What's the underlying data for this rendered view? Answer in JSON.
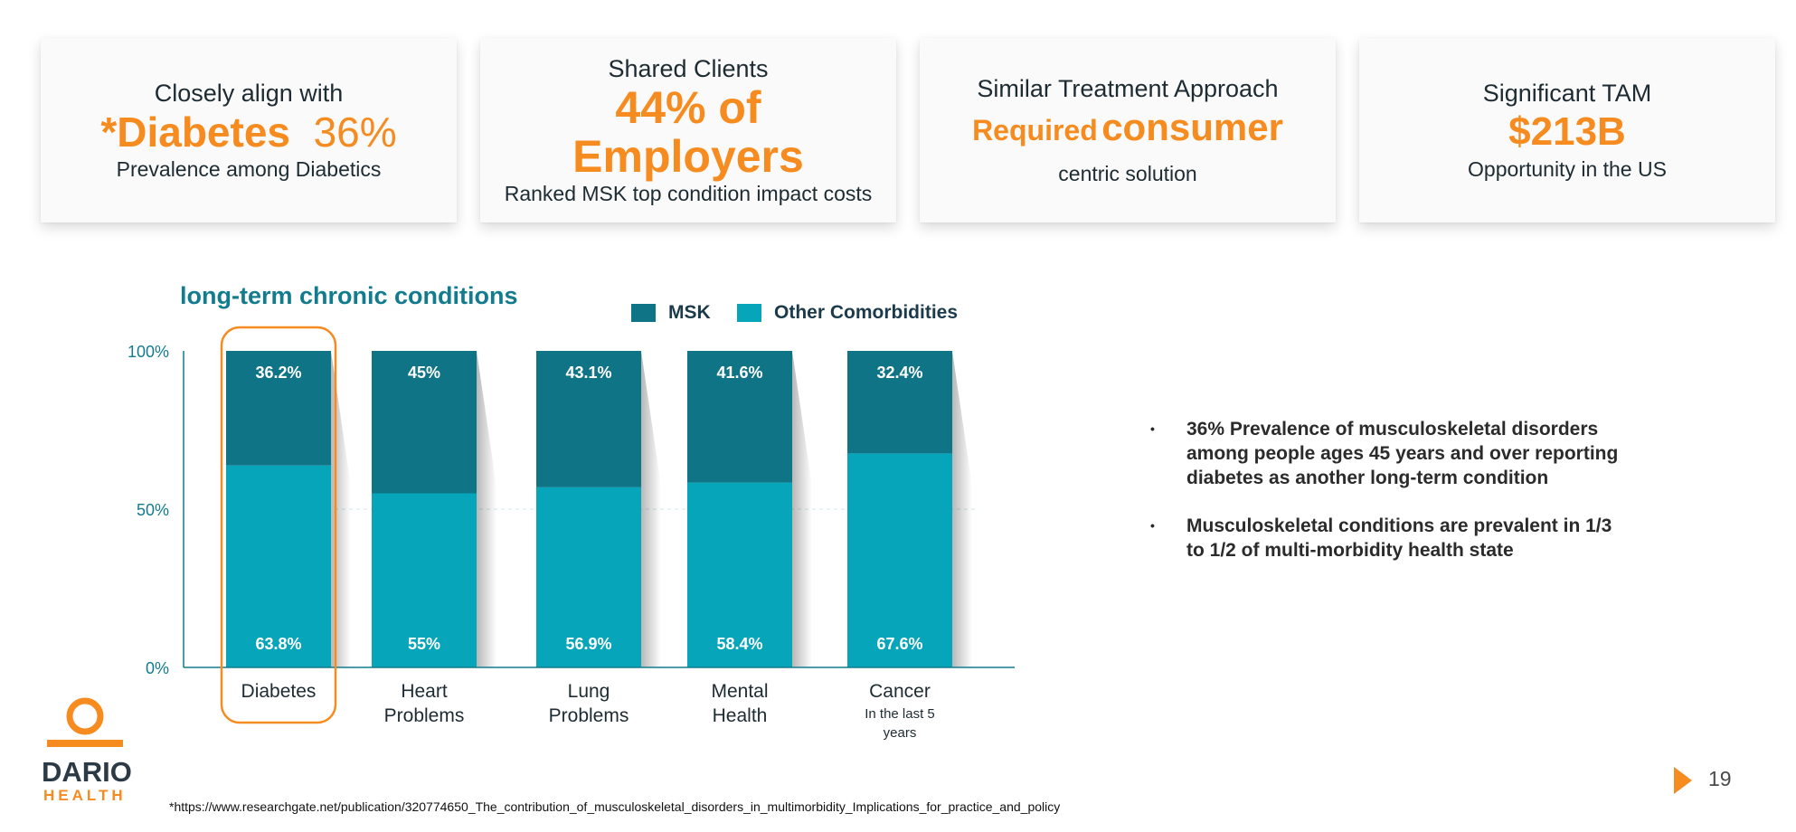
{
  "cards": [
    {
      "lead": "Closely align with",
      "big_a": "*Diabetes",
      "big_b": "36%",
      "sub": "Prevalence among Diabetics"
    },
    {
      "lead": "Shared Clients",
      "big_a": "44%  of",
      "big_b": "Employers",
      "sub": "Ranked MSK top condition impact costs"
    },
    {
      "lead": "Similar Treatment Approach",
      "big_a": "Required",
      "big_b": "consumer",
      "sub": "centric solution"
    },
    {
      "lead": "Significant TAM",
      "big_a": "$213B",
      "sub": "Opportunity in the US"
    }
  ],
  "chart_data": {
    "type": "bar",
    "stacked": true,
    "title": "long-term chronic conditions",
    "categories": [
      "Diabetes",
      "Heart Problems",
      "Lung Problems",
      "Mental Health",
      "Cancer"
    ],
    "category_lines": [
      [
        "Diabetes"
      ],
      [
        "Heart",
        "Problems"
      ],
      [
        "Lung",
        "Problems"
      ],
      [
        "Mental",
        "Health"
      ],
      [
        "Cancer"
      ]
    ],
    "category_sublines": [
      [],
      [],
      [],
      [],
      [
        "In the last 5",
        "years"
      ]
    ],
    "series": [
      {
        "name": "MSK",
        "values": [
          36.2,
          45,
          43.1,
          41.6,
          32.4
        ],
        "labels": [
          "36.2%",
          "45%",
          "43.1%",
          "41.6%",
          "32.4%"
        ],
        "color": "#0f7485"
      },
      {
        "name": "Other Comorbidities",
        "values": [
          63.8,
          55,
          56.9,
          58.4,
          67.6
        ],
        "labels": [
          "63.8%",
          "55%",
          "56.9%",
          "58.4%",
          "67.6%"
        ],
        "color": "#06a5b9"
      }
    ],
    "yticks": [
      "0%",
      "50%",
      "100%"
    ],
    "ylim": [
      0,
      100
    ],
    "highlight_category": "Diabetes",
    "highlight_color": "#f68b1f",
    "legend_position": "top"
  },
  "bullets": [
    "36%  Prevalence of musculoskeletal disorders among people ages 45 years and over reporting diabetes as another long-term condition",
    "Musculoskeletal conditions are prevalent in 1/3 to 1/2 of multi-morbidity health state"
  ],
  "bullet_marker": "•",
  "footnote": "*https://www.researchgate.net/publication/320774650_The_contribution_of_musculoskeletal_disorders_in_multimorbidity_Implications_for_practice_and_policy",
  "logo": {
    "line1": "DARIO",
    "line2": "HEALTH"
  },
  "page_number": "19",
  "colors": {
    "accent": "#f68b1f",
    "teal_dark": "#0f7485",
    "teal_light": "#06a5b9",
    "title_teal": "#127c8e"
  }
}
